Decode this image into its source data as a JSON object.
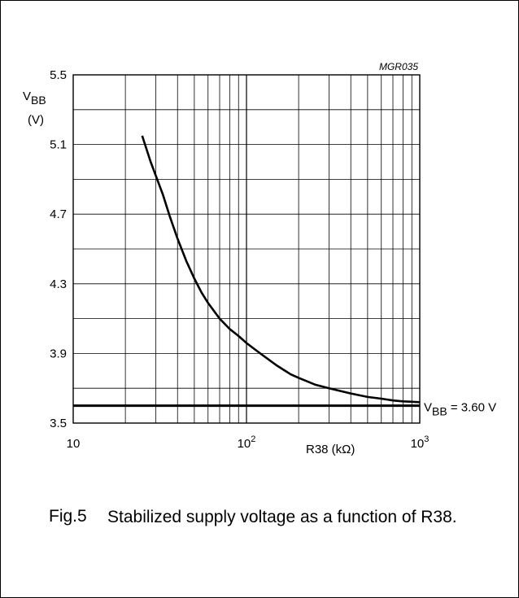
{
  "figure": {
    "label": "Fig.5",
    "caption": "Stabilized supply voltage as a function of R38."
  },
  "chart_data": {
    "type": "line",
    "code": "MGR035",
    "ylabel_main": "V",
    "ylabel_sub": "BB",
    "ylabel_unit": "(V)",
    "xlabel": "R38 (kΩ)",
    "x_scale": "log",
    "xlim": [
      10,
      1000
    ],
    "ylim": [
      3.5,
      5.5
    ],
    "y_ticks": [
      "5.5",
      "5.1",
      "4.7",
      "4.3",
      "3.9",
      "3.5"
    ],
    "x_ticks": [
      {
        "base": "10",
        "exp": ""
      },
      {
        "base": "10",
        "exp": "2"
      },
      {
        "base": "10",
        "exp": "3"
      }
    ],
    "grid": true,
    "series": [
      {
        "x": [
          25,
          28,
          30,
          33,
          36,
          40,
          45,
          50,
          55,
          60,
          70,
          80,
          90,
          100,
          120,
          150,
          180,
          200,
          250,
          300,
          400,
          500,
          600,
          700,
          800,
          1000
        ],
        "y": [
          5.15,
          5.0,
          4.92,
          4.81,
          4.69,
          4.56,
          4.43,
          4.33,
          4.25,
          4.19,
          4.1,
          4.04,
          4.0,
          3.96,
          3.9,
          3.83,
          3.78,
          3.76,
          3.72,
          3.7,
          3.67,
          3.65,
          3.64,
          3.63,
          3.625,
          3.62
        ]
      }
    ],
    "reference": {
      "y": 3.6,
      "label_main": "V",
      "label_sub": "BB",
      "label_rest": " = 3.60 V"
    }
  }
}
